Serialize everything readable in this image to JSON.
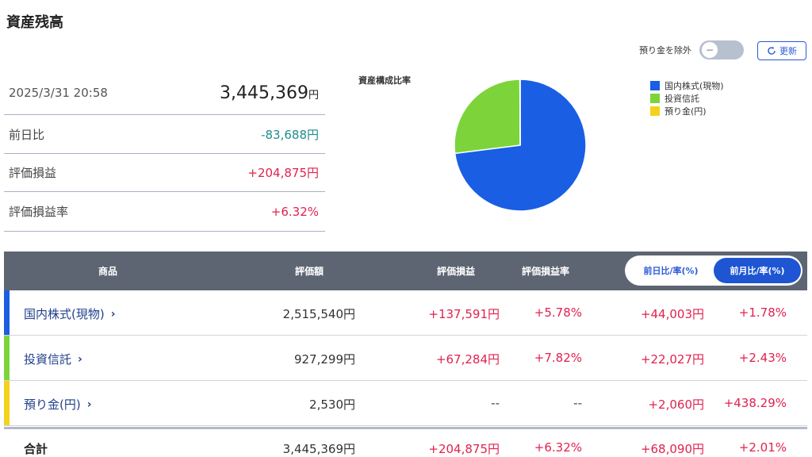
{
  "page_title": "資産残高",
  "summary": {
    "datetime": "2025/3/31 20:58",
    "total_value": "3,445,369",
    "yen_unit": "円",
    "rows": [
      {
        "label": "前日比",
        "value": "-83,688円"
      },
      {
        "label": "評価損益",
        "value": "+204,875円"
      },
      {
        "label": "評価損益率",
        "value": "+6.32%"
      }
    ]
  },
  "controls": {
    "exclude_deposit_label": "預り金を除外",
    "toggle_knob": "−",
    "refresh_icon": "refresh-icon",
    "refresh_label": "更新"
  },
  "chart_data": {
    "type": "pie",
    "title": "資産構成比率",
    "legend_placement": "top-right",
    "slices": [
      {
        "name": "国内株式(現物)",
        "value": 2515540,
        "color": "#1a5ee4"
      },
      {
        "name": "投資信託",
        "value": 927299,
        "color": "#7cd43a"
      },
      {
        "name": "預り金(円)",
        "value": 2530,
        "color": "#f4d21c"
      }
    ]
  },
  "table": {
    "headers": {
      "product": "商品",
      "value": "評価額",
      "pl": "評価損益",
      "pl_rate": "評価損益率",
      "toggle_day": "前日比/率(%)",
      "toggle_month": "前月比/率(%)"
    },
    "rows": [
      {
        "name": "国内株式(現物)",
        "bar_color": "#1a5ee4",
        "value": "2,515,540円",
        "pl": "+137,591円",
        "pl_rate": "+5.78%",
        "diff": "+44,003円",
        "diff_rate": "+1.78%"
      },
      {
        "name": "投資信託",
        "bar_color": "#7cd43a",
        "value": "927,299円",
        "pl": "+67,284円",
        "pl_rate": "+7.82%",
        "diff": "+22,027円",
        "diff_rate": "+2.43%"
      },
      {
        "name": "預り金(円)",
        "bar_color": "#f4d21c",
        "value": "2,530円",
        "pl": "--",
        "pl_rate": "--",
        "diff": "+2,060円",
        "diff_rate": "+438.29%"
      }
    ],
    "total": {
      "label": "合計",
      "value": "3,445,369円",
      "pl": "+204,875円",
      "pl_rate": "+6.32%",
      "diff": "+68,090円",
      "diff_rate": "+2.01%"
    },
    "chevron": "›"
  },
  "colors": {
    "accent_blue": "#1e55d3",
    "positive_red": "#e0224e",
    "negative_teal": "#1f8c8c",
    "header_gray": "#5d6572"
  }
}
